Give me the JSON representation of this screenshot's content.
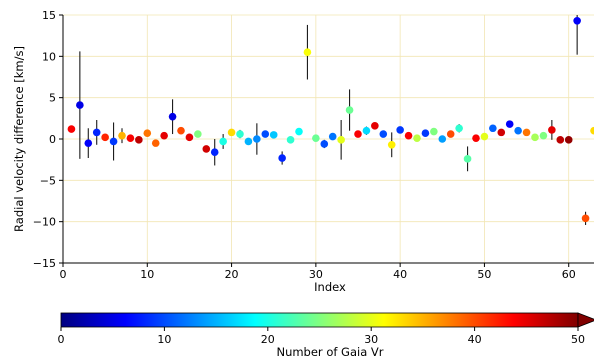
{
  "chart_data": {
    "type": "scatter",
    "xlabel": "Index",
    "ylabel": "Radial velocity difference [km/s]",
    "xlim": [
      0,
      63
    ],
    "ylim": [
      -15,
      15
    ],
    "xticks": [
      0,
      10,
      20,
      30,
      40,
      50,
      60
    ],
    "yticks": [
      -15,
      -10,
      -5,
      0,
      5,
      10,
      15
    ],
    "grid": true,
    "grid_color": "#f2e6b3",
    "colormap": "jet",
    "colorbar": {
      "label": "Number of Gaia Vr",
      "range": [
        0,
        50
      ],
      "ticks": [
        0,
        10,
        20,
        30,
        40,
        50
      ],
      "extend": "max"
    },
    "points": [
      {
        "x": 1,
        "y": 1.2,
        "err": 0.3,
        "color": 44
      },
      {
        "x": 2,
        "y": 4.1,
        "err": 6.5,
        "color": 5
      },
      {
        "x": 3,
        "y": -0.5,
        "err": 1.8,
        "color": 6
      },
      {
        "x": 4,
        "y": 0.8,
        "err": 1.5,
        "color": 8
      },
      {
        "x": 5,
        "y": 0.2,
        "err": 0.4,
        "color": 42
      },
      {
        "x": 6,
        "y": -0.3,
        "err": 2.3,
        "color": 9
      },
      {
        "x": 7,
        "y": 0.4,
        "err": 0.9,
        "color": 35
      },
      {
        "x": 8,
        "y": 0.1,
        "err": 0.3,
        "color": 44
      },
      {
        "x": 9,
        "y": -0.1,
        "err": 0.3,
        "color": 47
      },
      {
        "x": 10,
        "y": 0.7,
        "err": 0.3,
        "color": 38
      },
      {
        "x": 11,
        "y": -0.5,
        "err": 0.4,
        "color": 39
      },
      {
        "x": 12,
        "y": 0.4,
        "err": 0.3,
        "color": 45
      },
      {
        "x": 13,
        "y": 2.7,
        "err": 2.1,
        "color": 5
      },
      {
        "x": 14,
        "y": 1.0,
        "err": 0.3,
        "color": 40
      },
      {
        "x": 15,
        "y": 0.2,
        "err": 0.3,
        "color": 45
      },
      {
        "x": 16,
        "y": 0.6,
        "err": 0.3,
        "color": 25
      },
      {
        "x": 17,
        "y": -1.2,
        "err": 0.4,
        "color": 46
      },
      {
        "x": 18,
        "y": -1.6,
        "err": 1.6,
        "color": 8
      },
      {
        "x": 19,
        "y": -0.3,
        "err": 0.9,
        "color": 20
      },
      {
        "x": 20,
        "y": 0.8,
        "err": 0.3,
        "color": 33
      },
      {
        "x": 21,
        "y": 0.6,
        "err": 0.5,
        "color": 21
      },
      {
        "x": 22,
        "y": -0.3,
        "err": 0.3,
        "color": 15
      },
      {
        "x": 23,
        "y": 0.0,
        "err": 1.9,
        "color": 13
      },
      {
        "x": 24,
        "y": 0.6,
        "err": 0.4,
        "color": 10
      },
      {
        "x": 25,
        "y": 0.5,
        "err": 0.4,
        "color": 16
      },
      {
        "x": 26,
        "y": -2.3,
        "err": 0.8,
        "color": 8
      },
      {
        "x": 27,
        "y": -0.1,
        "err": 0.3,
        "color": 21
      },
      {
        "x": 28,
        "y": 0.9,
        "err": 0.3,
        "color": 19
      },
      {
        "x": 29,
        "y": 10.5,
        "err": 3.3,
        "color": 31
      },
      {
        "x": 30,
        "y": 0.1,
        "err": 0.3,
        "color": 24
      },
      {
        "x": 31,
        "y": -0.6,
        "err": 0.5,
        "color": 10
      },
      {
        "x": 32,
        "y": 0.3,
        "err": 0.3,
        "color": 12
      },
      {
        "x": 33,
        "y": -0.1,
        "err": 2.4,
        "color": 30
      },
      {
        "x": 34,
        "y": 3.5,
        "err": 2.5,
        "color": 24
      },
      {
        "x": 35,
        "y": 0.6,
        "err": 0.3,
        "color": 44
      },
      {
        "x": 36,
        "y": 1.0,
        "err": 0.5,
        "color": 17
      },
      {
        "x": 37,
        "y": 1.6,
        "err": 0.3,
        "color": 45
      },
      {
        "x": 38,
        "y": 0.6,
        "err": 0.3,
        "color": 10
      },
      {
        "x": 39,
        "y": -0.7,
        "err": 1.5,
        "color": 32
      },
      {
        "x": 40,
        "y": 1.1,
        "err": 0.3,
        "color": 9
      },
      {
        "x": 41,
        "y": 0.4,
        "err": 0.3,
        "color": 44
      },
      {
        "x": 42,
        "y": 0.1,
        "err": 0.3,
        "color": 28
      },
      {
        "x": 43,
        "y": 0.7,
        "err": 0.3,
        "color": 9
      },
      {
        "x": 44,
        "y": 0.9,
        "err": 0.3,
        "color": 25
      },
      {
        "x": 45,
        "y": 0.0,
        "err": 0.3,
        "color": 14
      },
      {
        "x": 46,
        "y": 0.6,
        "err": 0.3,
        "color": 40
      },
      {
        "x": 47,
        "y": 1.3,
        "err": 0.5,
        "color": 21
      },
      {
        "x": 48,
        "y": -2.4,
        "err": 1.5,
        "color": 23
      },
      {
        "x": 49,
        "y": 0.1,
        "err": 0.3,
        "color": 44
      },
      {
        "x": 50,
        "y": 0.3,
        "err": 0.3,
        "color": 30
      },
      {
        "x": 51,
        "y": 1.3,
        "err": 0.3,
        "color": 11
      },
      {
        "x": 52,
        "y": 0.8,
        "err": 0.3,
        "color": 46
      },
      {
        "x": 53,
        "y": 1.8,
        "err": 0.3,
        "color": 6
      },
      {
        "x": 54,
        "y": 1.0,
        "err": 0.3,
        "color": 12
      },
      {
        "x": 55,
        "y": 0.8,
        "err": 0.3,
        "color": 38
      },
      {
        "x": 56,
        "y": 0.2,
        "err": 0.3,
        "color": 27
      },
      {
        "x": 57,
        "y": 0.4,
        "err": 0.3,
        "color": 25
      },
      {
        "x": 58,
        "y": 1.1,
        "err": 1.2,
        "color": 45
      },
      {
        "x": 59,
        "y": -0.1,
        "err": 0.3,
        "color": 47
      },
      {
        "x": 60,
        "y": -0.1,
        "err": 0.3,
        "color": 49
      },
      {
        "x": 61,
        "y": 14.3,
        "err": 4.1,
        "color": 6
      },
      {
        "x": 62,
        "y": -9.6,
        "err": 0.8,
        "color": 40
      },
      {
        "x": 63,
        "y": 1.0,
        "err": 0.4,
        "color": 33
      }
    ]
  }
}
